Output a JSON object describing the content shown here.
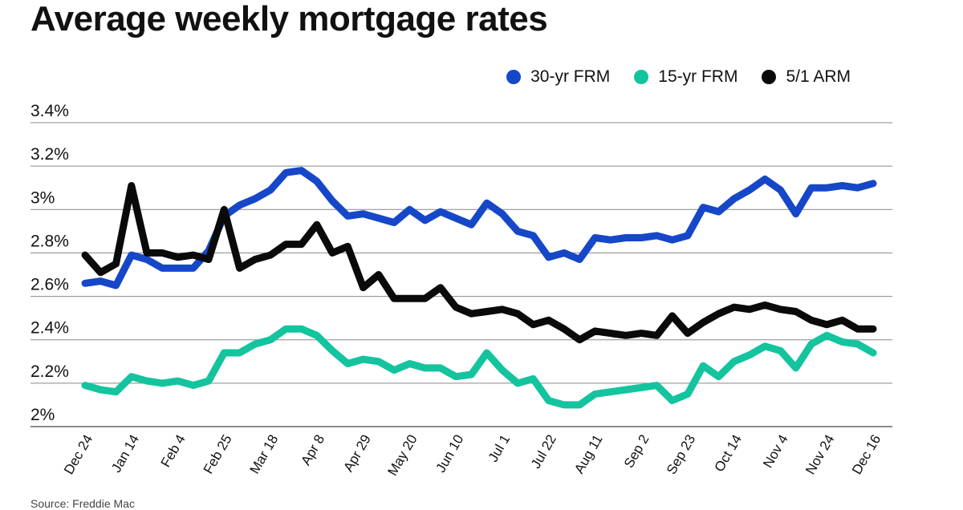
{
  "title": "Average weekly mortgage rates",
  "source": "Source: Freddie Mac",
  "chart_data": {
    "type": "line",
    "title": "Average weekly mortgage rates",
    "xlabel": "",
    "ylabel": "",
    "ylim": [
      2.0,
      3.4
    ],
    "yticks": [
      2.0,
      2.2,
      2.4,
      2.6,
      2.8,
      3.0,
      3.2,
      3.4
    ],
    "ytick_labels": [
      "2%",
      "2.2%",
      "2.4%",
      "2.6%",
      "2.8%",
      "3%",
      "3.2%",
      "3.4%"
    ],
    "x_tick_labels": [
      "Dec 24",
      "Jan 14",
      "Feb 4",
      "Feb 25",
      "Mar 18",
      "Apr 8",
      "Apr 29",
      "May 20",
      "Jun 10",
      "Jul 1",
      "Jul 22",
      "Aug 11",
      "Sep 2",
      "Sep 23",
      "Oct 14",
      "Nov 4",
      "Nov 24",
      "Dec 16"
    ],
    "x_tick_index": [
      0,
      3,
      6,
      9,
      12,
      15,
      18,
      21,
      24,
      27,
      30,
      33,
      36,
      39,
      42,
      45,
      48,
      51
    ],
    "legend_position": "top-right",
    "grid": true,
    "series": [
      {
        "name": "30-yr FRM",
        "color": "#1547c8",
        "values": [
          2.66,
          2.67,
          2.65,
          2.79,
          2.77,
          2.73,
          2.73,
          2.73,
          2.81,
          2.97,
          3.02,
          3.05,
          3.09,
          3.17,
          3.18,
          3.13,
          3.04,
          2.97,
          2.98,
          2.96,
          2.94,
          3.0,
          2.95,
          2.99,
          2.96,
          2.93,
          3.03,
          2.98,
          2.9,
          2.88,
          2.78,
          2.8,
          2.77,
          2.87,
          2.86,
          2.87,
          2.87,
          2.88,
          2.86,
          2.88,
          3.01,
          2.99,
          3.05,
          3.09,
          3.14,
          3.09,
          2.98,
          3.1,
          3.1,
          3.11,
          3.1,
          3.12
        ]
      },
      {
        "name": "15-yr FRM",
        "color": "#13c49e",
        "values": [
          2.19,
          2.17,
          2.16,
          2.23,
          2.21,
          2.2,
          2.21,
          2.19,
          2.21,
          2.34,
          2.34,
          2.38,
          2.4,
          2.45,
          2.45,
          2.42,
          2.35,
          2.29,
          2.31,
          2.3,
          2.26,
          2.29,
          2.27,
          2.27,
          2.23,
          2.24,
          2.34,
          2.26,
          2.2,
          2.22,
          2.12,
          2.1,
          2.1,
          2.15,
          2.16,
          2.17,
          2.18,
          2.19,
          2.12,
          2.15,
          2.28,
          2.23,
          2.3,
          2.33,
          2.37,
          2.35,
          2.27,
          2.38,
          2.42,
          2.39,
          2.38,
          2.34
        ]
      },
      {
        "name": "5/1 ARM",
        "color": "#0a0a0a",
        "values": [
          2.79,
          2.71,
          2.75,
          3.11,
          2.8,
          2.8,
          2.78,
          2.79,
          2.77,
          3.0,
          2.73,
          2.77,
          2.79,
          2.84,
          2.84,
          2.93,
          2.8,
          2.83,
          2.64,
          2.7,
          2.59,
          2.59,
          2.59,
          2.64,
          2.55,
          2.52,
          2.53,
          2.54,
          2.52,
          2.47,
          2.49,
          2.45,
          2.4,
          2.44,
          2.43,
          2.42,
          2.43,
          2.42,
          2.51,
          2.43,
          2.48,
          2.52,
          2.55,
          2.54,
          2.56,
          2.54,
          2.53,
          2.49,
          2.47,
          2.49,
          2.45,
          2.45
        ]
      }
    ]
  }
}
